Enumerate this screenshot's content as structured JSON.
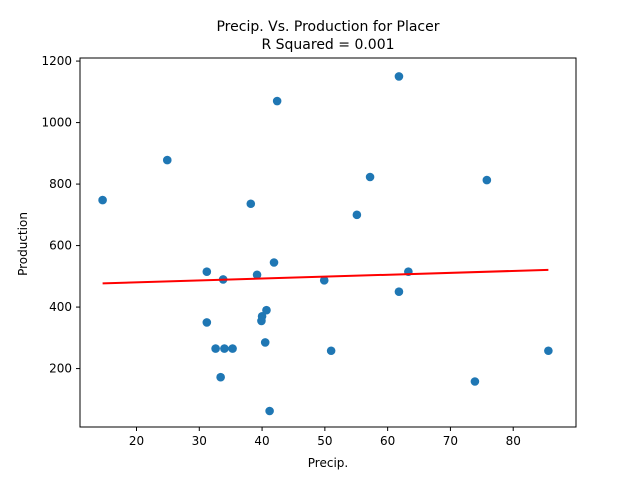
{
  "chart_data": {
    "type": "scatter",
    "title_line1": "Precip. Vs. Production for Placer",
    "title_line2": "R Squared =  0.001",
    "xlabel": "Precip.",
    "ylabel": "Production",
    "xlim": [
      11,
      90
    ],
    "ylim": [
      10,
      1210
    ],
    "xticks": [
      20,
      30,
      40,
      50,
      60,
      70,
      80
    ],
    "yticks": [
      200,
      400,
      600,
      800,
      1000,
      1200
    ],
    "grid": false,
    "points": [
      {
        "x": 14.6,
        "y": 748
      },
      {
        "x": 24.9,
        "y": 878
      },
      {
        "x": 31.2,
        "y": 515
      },
      {
        "x": 31.2,
        "y": 350
      },
      {
        "x": 32.6,
        "y": 265
      },
      {
        "x": 33.4,
        "y": 172
      },
      {
        "x": 33.8,
        "y": 490
      },
      {
        "x": 34.0,
        "y": 265
      },
      {
        "x": 35.3,
        "y": 265
      },
      {
        "x": 38.2,
        "y": 736
      },
      {
        "x": 39.2,
        "y": 505
      },
      {
        "x": 39.9,
        "y": 355
      },
      {
        "x": 40.0,
        "y": 370
      },
      {
        "x": 40.5,
        "y": 285
      },
      {
        "x": 40.7,
        "y": 390
      },
      {
        "x": 41.2,
        "y": 62
      },
      {
        "x": 41.9,
        "y": 545
      },
      {
        "x": 42.4,
        "y": 1070
      },
      {
        "x": 49.9,
        "y": 487
      },
      {
        "x": 51.0,
        "y": 258
      },
      {
        "x": 55.1,
        "y": 700
      },
      {
        "x": 57.2,
        "y": 823
      },
      {
        "x": 61.8,
        "y": 1150
      },
      {
        "x": 61.8,
        "y": 450
      },
      {
        "x": 63.3,
        "y": 515
      },
      {
        "x": 73.9,
        "y": 158
      },
      {
        "x": 75.8,
        "y": 813
      },
      {
        "x": 85.6,
        "y": 258
      }
    ],
    "fit_line": {
      "x": [
        14.6,
        85.6
      ],
      "y": [
        477,
        521
      ]
    },
    "colors": {
      "points": "#1f77b4",
      "fit_line": "#ff0000"
    }
  }
}
